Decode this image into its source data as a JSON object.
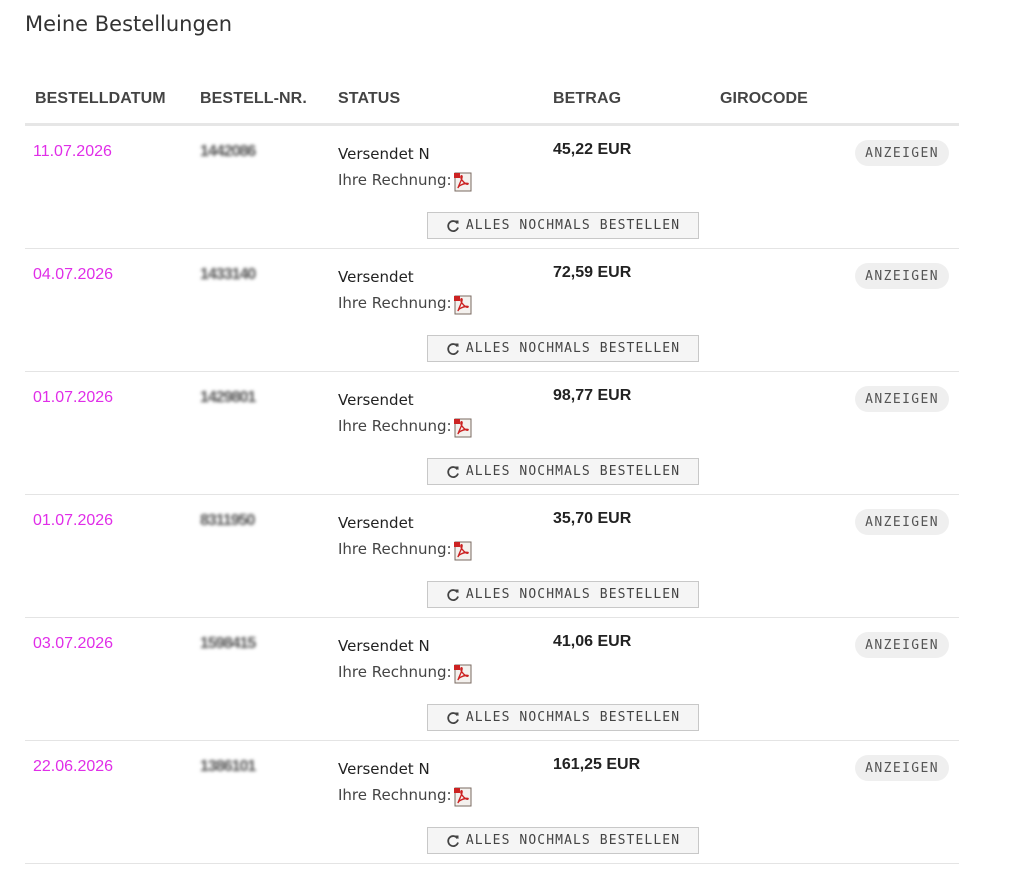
{
  "page": {
    "title": "Meine Bestellungen"
  },
  "table": {
    "headers": [
      "BESTELLDATUM",
      "BESTELL-NR.",
      "STATUS",
      "BETRAG",
      "GIROCODE"
    ],
    "invoice_label": "Ihre Rechnung:",
    "show_label": "ANZEIGEN",
    "reorder_label": "ALLES NOCHMALS BESTELLEN",
    "rows": [
      {
        "date": "11.07.2026",
        "order_no": "1442086",
        "status": "Versendet N",
        "amount": "45,22 EUR"
      },
      {
        "date": "04.07.2026",
        "order_no": "1433140",
        "status": "Versendet",
        "amount": "72,59 EUR"
      },
      {
        "date": "01.07.2026",
        "order_no": "1429801",
        "status": "Versendet",
        "amount": "98,77 EUR"
      },
      {
        "date": "01.07.2026",
        "order_no": "8311950",
        "status": "Versendet",
        "amount": "35,70 EUR"
      },
      {
        "date": "03.07.2026",
        "order_no": "1598415",
        "status": "Versendet N",
        "amount": "41,06 EUR"
      },
      {
        "date": "22.06.2026",
        "order_no": "1386101",
        "status": "Versendet N",
        "amount": "161,25 EUR"
      }
    ]
  },
  "colors": {
    "date_link": "#e02ee8",
    "pdf_red": "#cc2222"
  },
  "icons": {
    "invoice": "pdf-icon",
    "reorder": "reload-icon"
  }
}
